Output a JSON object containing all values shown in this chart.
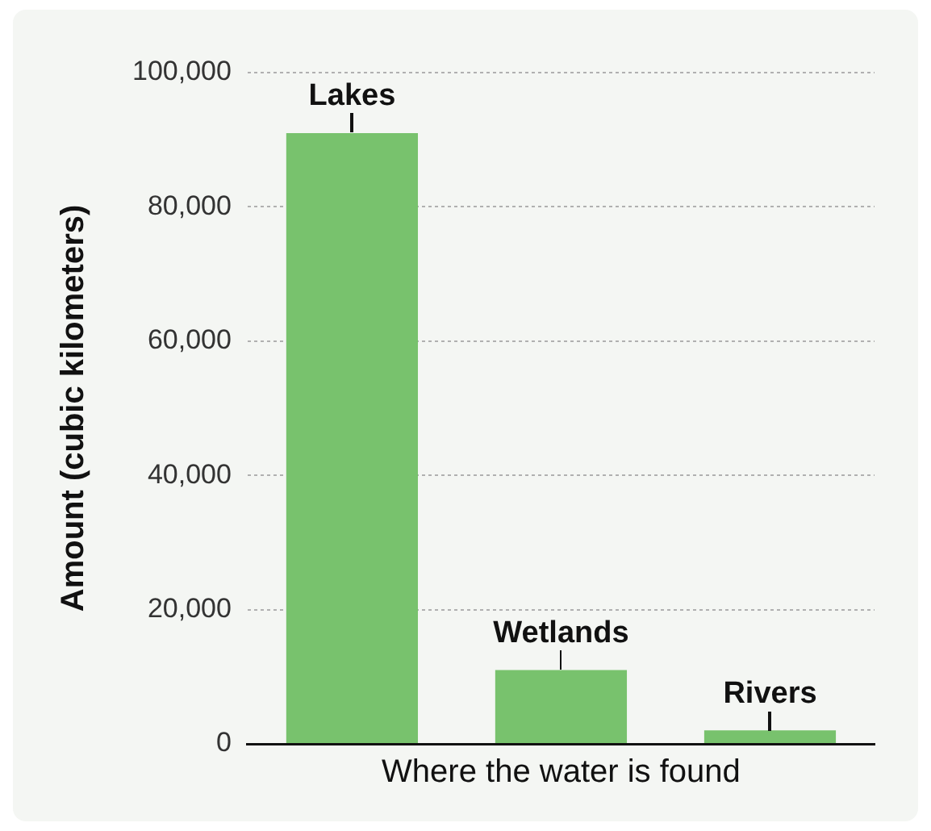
{
  "chart_data": {
    "type": "bar",
    "xlabel": "Where the water is found",
    "ylabel": "Amount (cubic kilometers)",
    "categories": [
      "Lakes",
      "Wetlands",
      "Rivers"
    ],
    "values": [
      91000,
      11000,
      2000
    ],
    "color": "#78c26d",
    "ylim": [
      0,
      100000
    ],
    "yticks": [
      0,
      {
        "value": 20000,
        "label": "20,000"
      },
      {
        "value": 40000,
        "label": "40,000"
      },
      {
        "value": 60000,
        "label": "60,000"
      },
      {
        "value": 80000,
        "label": "80,000"
      },
      {
        "value": 100000,
        "label": "100,000"
      }
    ],
    "grid": "y",
    "legend": false
  }
}
